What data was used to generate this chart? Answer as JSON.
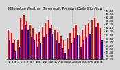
{
  "title": "Milwaukee Weather Barometric Pressure Daily High/Low",
  "high_values": [
    30.05,
    29.95,
    29.72,
    29.75,
    30.38,
    30.45,
    30.28,
    30.18,
    30.08,
    29.9,
    29.98,
    30.12,
    30.22,
    30.32,
    30.18,
    30.05,
    29.98,
    29.85,
    29.72,
    29.8,
    29.95,
    30.08,
    30.18,
    29.88,
    30.05,
    30.15,
    30.22,
    30.32,
    30.38,
    30.22,
    30.08
  ],
  "low_values": [
    29.72,
    29.65,
    29.42,
    29.55,
    30.05,
    30.18,
    30.02,
    29.82,
    29.75,
    29.55,
    29.65,
    29.82,
    29.92,
    30.08,
    29.92,
    29.72,
    29.65,
    29.52,
    29.38,
    29.48,
    29.65,
    29.78,
    29.88,
    29.55,
    29.72,
    29.82,
    29.92,
    30.02,
    30.12,
    29.92,
    29.72
  ],
  "bar_color_high": "#FF0000",
  "bar_color_low": "#0000CC",
  "background_color": "#D8D8D8",
  "plot_bg": "#FFFFFF",
  "ymin": 29.2,
  "ymax": 30.6,
  "ytick_values": [
    29.2,
    29.3,
    29.4,
    29.5,
    29.6,
    29.7,
    29.8,
    29.9,
    30.0,
    30.1,
    30.2,
    30.3,
    30.4,
    30.5,
    30.6
  ],
  "ylabel_fontsize": 3.0,
  "title_fontsize": 3.5,
  "xlabel_fontsize": 2.8,
  "n_days": 31,
  "dotted_separators": [
    6,
    13,
    20,
    27
  ]
}
